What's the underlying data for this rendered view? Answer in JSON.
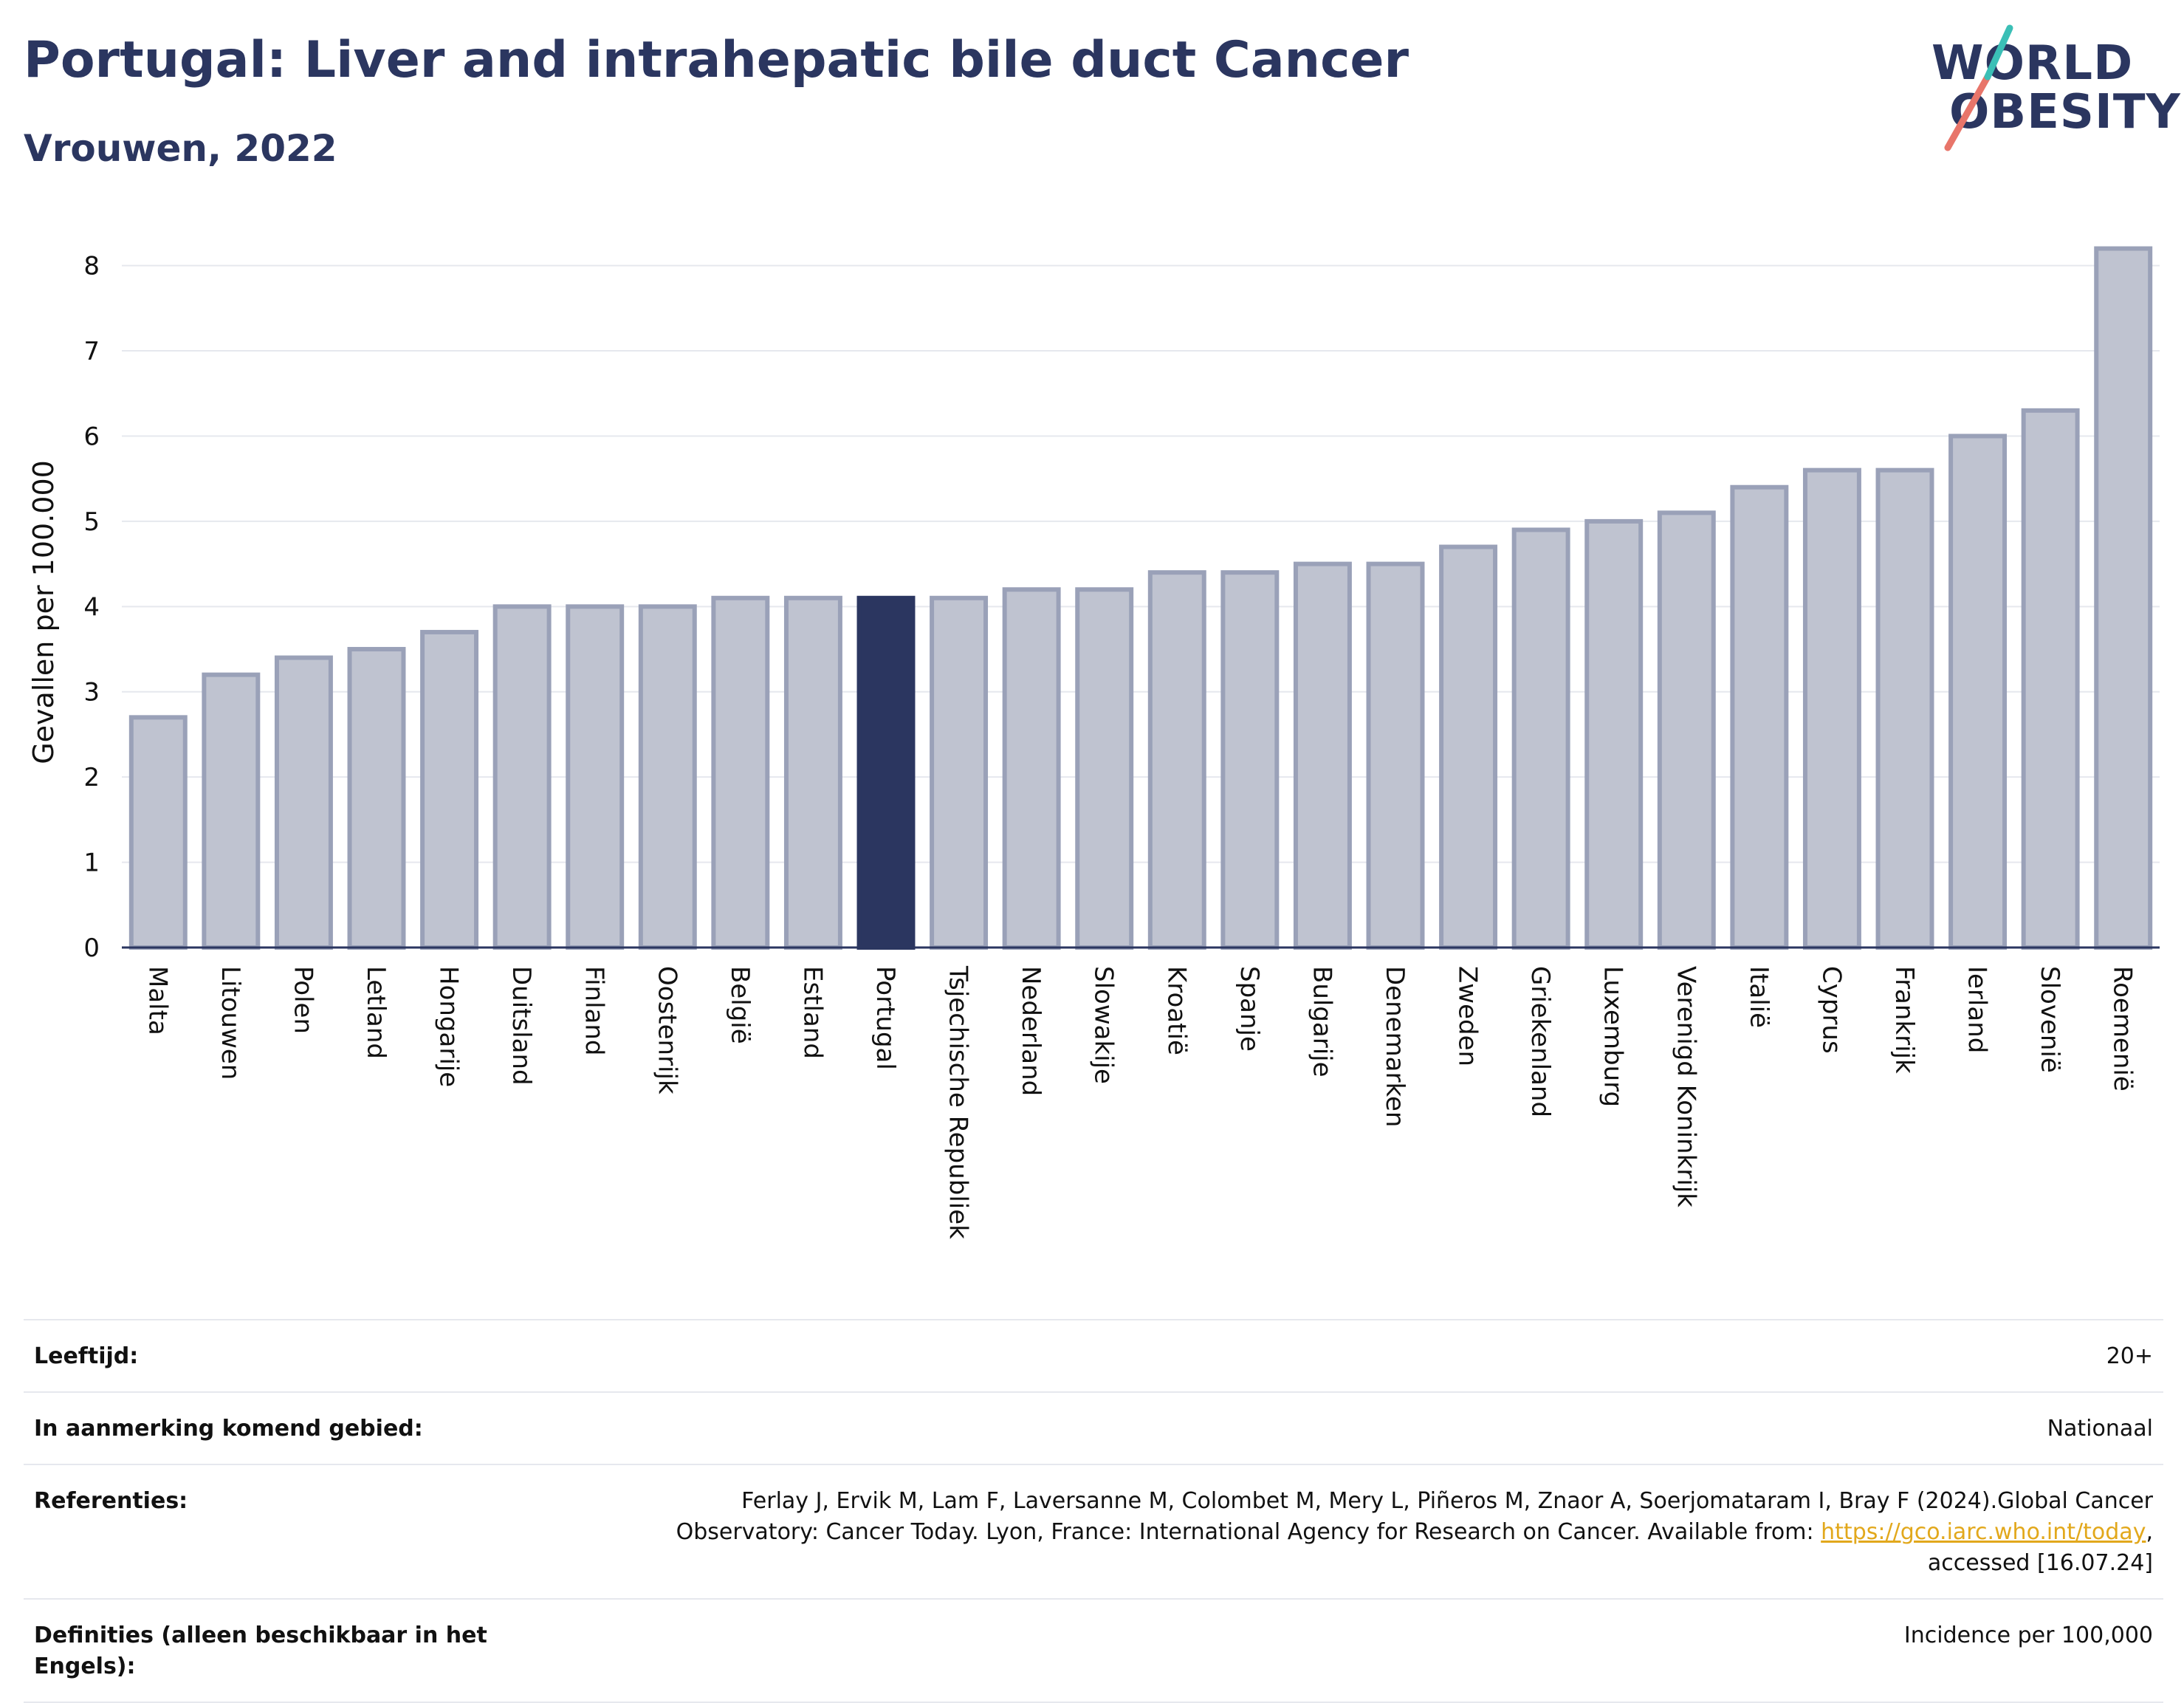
{
  "title": "Portugal: Liver and intrahepatic bile duct Cancer",
  "subtitle": "Vrouwen, 2022",
  "logo": {
    "line1": "WORLD",
    "line2": "OBESITY",
    "colors": [
      "#2b3660",
      "#e8756a",
      "#3bbfb6"
    ]
  },
  "colors": {
    "bar": "#bfc3d0",
    "bar_edge": "#9aa1b8",
    "highlight": "#2b3660",
    "grid": "#e6e8ee",
    "axis": "#2b3660"
  },
  "chart_data": {
    "type": "bar",
    "title": "Portugal: Liver and intrahepatic bile duct Cancer",
    "ylabel": "Gevallen per 100.000",
    "xlabel": "",
    "ylim": [
      0,
      8.3
    ],
    "yticks": [
      0,
      1,
      2,
      3,
      4,
      5,
      6,
      7,
      8
    ],
    "grid": true,
    "highlight": "Portugal",
    "categories": [
      "Malta",
      "Litouwen",
      "Polen",
      "Letland",
      "Hongarije",
      "Duitsland",
      "Finland",
      "Oostenrijk",
      "België",
      "Estland",
      "Portugal",
      "Tsjechische Republiek",
      "Nederland",
      "Slowakije",
      "Kroatië",
      "Spanje",
      "Bulgarije",
      "Denemarken",
      "Zweden",
      "Griekenland",
      "Luxemburg",
      "Verenigd Koninkrijk",
      "Italië",
      "Cyprus",
      "Frankrijk",
      "Ierland",
      "Slovenië",
      "Roemenië"
    ],
    "values": [
      2.7,
      3.2,
      3.4,
      3.5,
      3.7,
      4.0,
      4.0,
      4.0,
      4.1,
      4.1,
      4.1,
      4.1,
      4.2,
      4.2,
      4.4,
      4.4,
      4.5,
      4.5,
      4.7,
      4.9,
      5.0,
      5.1,
      5.4,
      5.6,
      5.6,
      6.0,
      6.3,
      8.2
    ]
  },
  "meta": [
    {
      "label": "Leeftijd:",
      "value": "20+"
    },
    {
      "label": "In aanmerking komend gebied:",
      "value": "Nationaal"
    },
    {
      "label": "Referenties:",
      "value_pre": "Ferlay J, Ervik M, Lam F, Laversanne M, Colombet M, Mery L, Piñeros M, Znaor A, Soerjomataram I, Bray F (2024).Global Cancer Observatory: Cancer Today. Lyon, France: International Agency for Research on Cancer. Available from: ",
      "link": "https://gco.iarc.who.int/today",
      "value_post": ", accessed [16.07.24]"
    },
    {
      "label": "Definities (alleen beschikbaar in het Engels):",
      "value": "Incidence per 100,000"
    }
  ]
}
